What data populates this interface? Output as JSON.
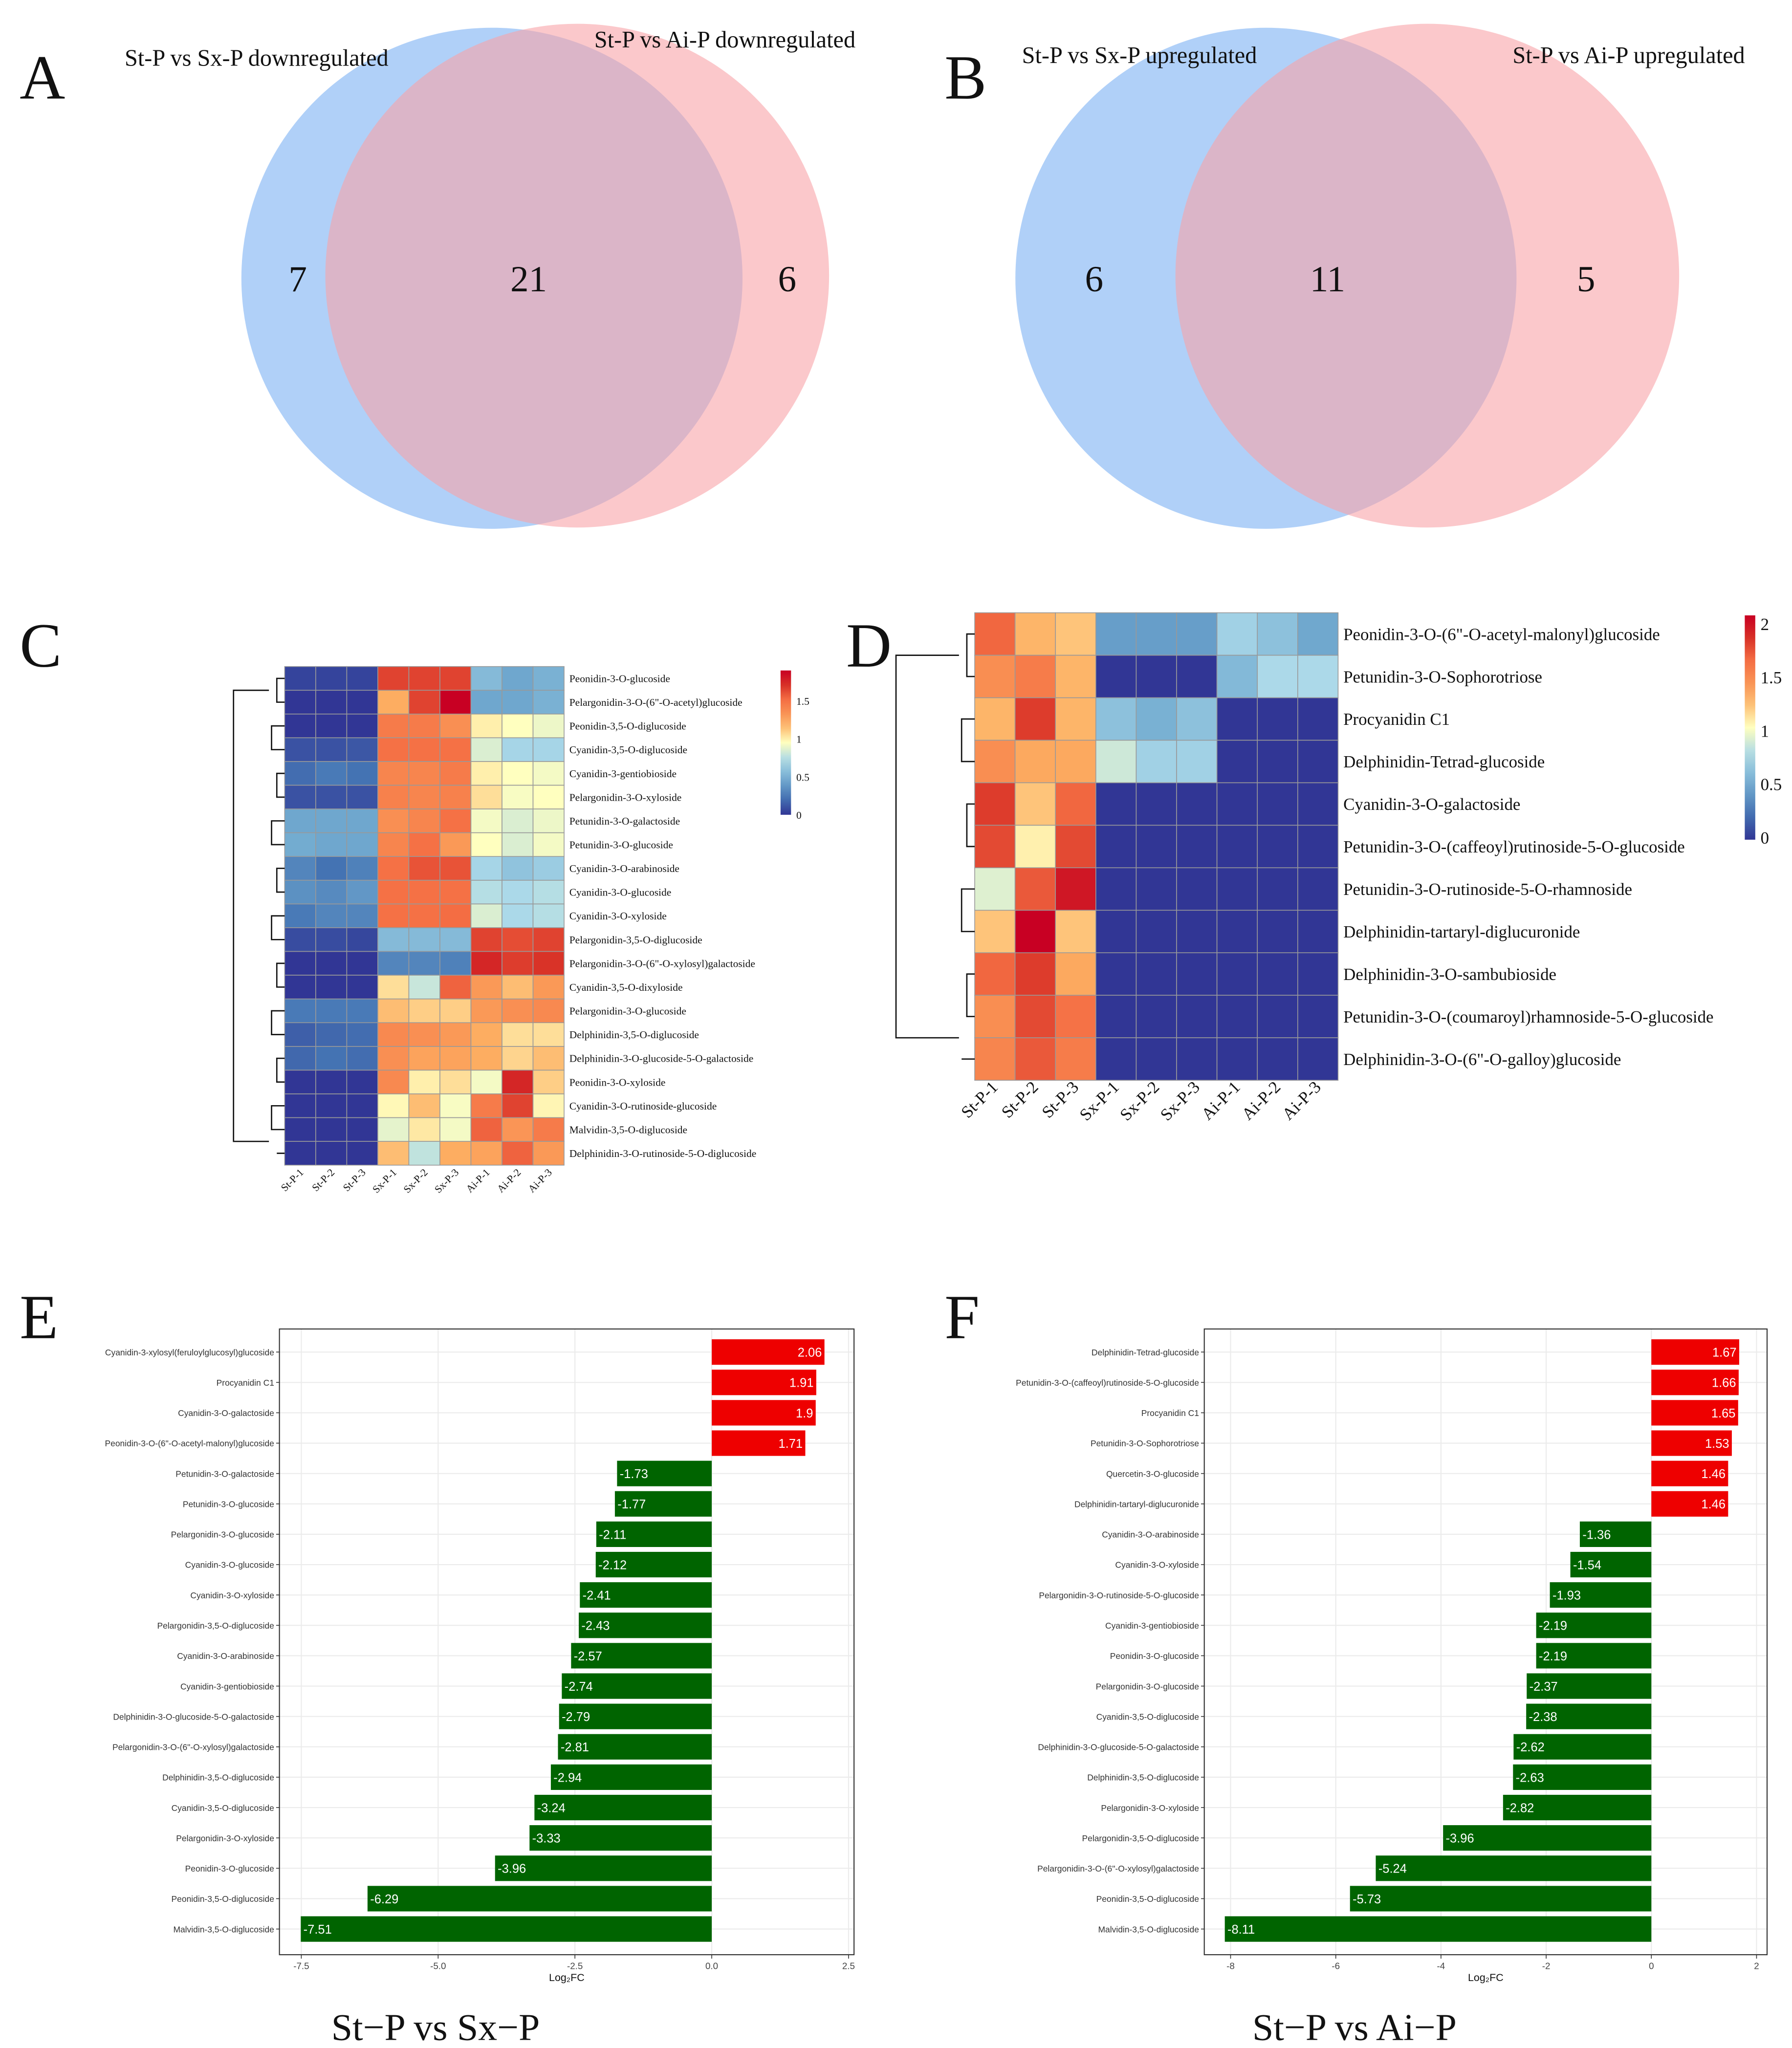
{
  "panel_letters": {
    "a": "A",
    "b": "B",
    "c": "C",
    "d": "D",
    "e": "E",
    "f": "F"
  },
  "colors": {
    "venn_blue": "#8fbcf5",
    "venn_pink": "#f9a3a8",
    "up": "#ee0000",
    "down": "#006400"
  },
  "chart_data": [
    {
      "type": "venn",
      "panel": "A",
      "sets": [
        "St-P vs Sx-P downregulated",
        "St-P vs Ai-P downregulated"
      ],
      "left_only": "7",
      "both": "21",
      "right_only": "6"
    },
    {
      "type": "venn",
      "panel": "B",
      "sets": [
        "St-P vs Sx-P upregulated",
        "St-P vs Ai-P upregulated"
      ],
      "left_only": "6",
      "both": "11",
      "right_only": "5"
    },
    {
      "type": "heatmap",
      "panel": "C",
      "columns": [
        "St-P-1",
        "St-P-2",
        "St-P-3",
        "Sx-P-1",
        "Sx-P-2",
        "Sx-P-3",
        "Ai-P-1",
        "Ai-P-2",
        "Ai-P-3"
      ],
      "colorbar_ticks": [
        "0",
        "0.5",
        "1",
        "1.5"
      ],
      "range": [
        0,
        1.9
      ],
      "rows": [
        "Peonidin-3-O-glucoside",
        "Pelargonidin-3-O-(6\"-O-acetyl)glucoside",
        "Peonidin-3,5-O-diglucoside",
        "Cyanidin-3,5-O-diglucoside",
        "Cyanidin-3-gentiobioside",
        "Pelargonidin-3-O-xyloside",
        "Petunidin-3-O-galactoside",
        "Petunidin-3-O-glucoside",
        "Cyanidin-3-O-arabinoside",
        "Cyanidin-3-O-glucoside",
        "Cyanidin-3-O-xyloside",
        "Pelargonidin-3,5-O-diglucoside",
        "Pelargonidin-3-O-(6\"-O-xylosyl)galactoside",
        "Cyanidin-3,5-O-dixyloside",
        "Pelargonidin-3-O-glucoside",
        "Delphinidin-3,5-O-diglucoside",
        "Delphinidin-3-O-glucoside-5-O-galactoside",
        "Peonidin-3-O-xyloside",
        "Cyanidin-3-O-rutinoside-glucoside",
        "Malvidin-3,5-O-diglucoside",
        "Delphinidin-3-O-rutinoside-5-O-diglucoside"
      ],
      "values": [
        [
          0.05,
          0.05,
          0.05,
          1.65,
          1.65,
          1.65,
          0.55,
          0.45,
          0.5
        ],
        [
          0,
          0,
          0,
          1.2,
          1.65,
          1.9,
          0.45,
          0.45,
          0.5
        ],
        [
          0,
          0,
          0,
          1.45,
          1.45,
          1.35,
          1.0,
          0.95,
          0.9
        ],
        [
          0.1,
          0.1,
          0.12,
          1.5,
          1.5,
          1.5,
          0.85,
          0.7,
          0.7
        ],
        [
          0.2,
          0.25,
          0.22,
          1.4,
          1.4,
          1.45,
          1.0,
          0.95,
          0.92
        ],
        [
          0.1,
          0.1,
          0.1,
          1.42,
          1.4,
          1.42,
          1.05,
          0.93,
          0.95
        ],
        [
          0.45,
          0.45,
          0.45,
          1.35,
          1.4,
          1.5,
          0.92,
          0.85,
          0.9
        ],
        [
          0.47,
          0.45,
          0.45,
          1.4,
          1.5,
          1.3,
          0.95,
          0.85,
          0.92
        ],
        [
          0.3,
          0.22,
          0.28,
          1.5,
          1.6,
          1.6,
          0.7,
          0.6,
          0.65
        ],
        [
          0.35,
          0.32,
          0.38,
          1.5,
          1.5,
          1.5,
          0.75,
          0.72,
          0.75
        ],
        [
          0.25,
          0.3,
          0.3,
          1.5,
          1.5,
          1.52,
          0.85,
          0.72,
          0.75
        ],
        [
          0.08,
          0.08,
          0.06,
          0.55,
          0.55,
          0.55,
          1.65,
          1.62,
          1.65
        ],
        [
          0,
          0,
          0,
          0.3,
          0.3,
          0.28,
          1.75,
          1.67,
          1.7
        ],
        [
          0,
          0,
          0,
          1.05,
          0.8,
          1.55,
          1.3,
          1.15,
          1.3
        ],
        [
          0.25,
          0.25,
          0.25,
          1.15,
          1.1,
          1.1,
          1.3,
          1.35,
          1.38
        ],
        [
          0.15,
          0.18,
          0.2,
          1.38,
          1.35,
          1.3,
          1.2,
          1.05,
          1.05
        ],
        [
          0.18,
          0.22,
          0.2,
          1.35,
          1.25,
          1.25,
          1.2,
          1.08,
          1.15
        ],
        [
          0,
          0,
          0,
          1.38,
          1.0,
          1.05,
          0.92,
          1.75,
          1.1
        ],
        [
          0,
          0,
          0,
          0.97,
          1.15,
          0.93,
          1.45,
          1.65,
          0.98
        ],
        [
          0,
          0,
          0,
          0.88,
          1.02,
          0.92,
          1.55,
          1.32,
          1.45
        ],
        [
          0,
          0,
          0,
          1.15,
          0.78,
          1.2,
          1.25,
          1.55,
          1.3
        ]
      ]
    },
    {
      "type": "heatmap",
      "panel": "D",
      "columns": [
        "St-P-1",
        "St-P-2",
        "St-P-3",
        "Sx-P-1",
        "Sx-P-2",
        "Sx-P-3",
        "Ai-P-1",
        "Ai-P-2",
        "Ai-P-3"
      ],
      "colorbar_ticks": [
        "0",
        "0.5",
        "1",
        "1.5",
        "2"
      ],
      "range": [
        0,
        2.1
      ],
      "rows": [
        "Peonidin-3-O-(6\"-O-acetyl-malonyl)glucoside",
        "Petunidin-3-O-Sophorotriose",
        "Procyanidin C1",
        "Delphinidin-Tetrad-glucoside",
        "Cyanidin-3-O-galactoside",
        "Petunidin-3-O-(caffeoyl)rutinoside-5-O-glucoside",
        "Petunidin-3-O-rutinoside-5-O-rhamnoside",
        "Delphinidin-tartaryl-diglucuronide",
        "Delphinidin-3-O-sambubioside",
        "Petunidin-3-O-(coumaroyl)rhamnoside-5-O-glucoside",
        "Delphinidin-3-O-(6\"-O-galloy)glucoside"
      ],
      "values": [
        [
          1.7,
          1.3,
          1.25,
          0.45,
          0.45,
          0.45,
          0.75,
          0.65,
          0.5
        ],
        [
          1.5,
          1.6,
          1.3,
          0,
          0,
          0,
          0.6,
          0.8,
          0.8
        ],
        [
          1.3,
          1.85,
          1.3,
          0.65,
          0.55,
          0.65,
          0,
          0,
          0
        ],
        [
          1.5,
          1.35,
          1.35,
          0.9,
          0.75,
          0.75,
          0,
          0,
          0
        ],
        [
          1.85,
          1.25,
          1.7,
          0,
          0,
          0,
          0,
          0,
          0
        ],
        [
          1.8,
          1.1,
          1.8,
          0,
          0,
          0,
          0,
          0,
          0
        ],
        [
          0.95,
          1.75,
          2.0,
          0,
          0,
          0,
          0,
          0,
          0
        ],
        [
          1.25,
          2.1,
          1.25,
          0,
          0,
          0,
          0,
          0,
          0
        ],
        [
          1.7,
          1.85,
          1.35,
          0,
          0,
          0,
          0,
          0,
          0
        ],
        [
          1.5,
          1.8,
          1.65,
          0,
          0,
          0,
          0,
          0,
          0
        ],
        [
          1.55,
          1.75,
          1.6,
          0,
          0,
          0,
          0,
          0,
          0
        ]
      ]
    },
    {
      "type": "bar",
      "panel": "E",
      "orientation": "horizontal",
      "title": "St−P  vs  Sx−P",
      "xlabel": "Log₂FC",
      "xlim": [
        -7.9,
        2.6
      ],
      "xticks": [
        "-7.5",
        "-5.0",
        "-2.5",
        "0.0",
        "2.5"
      ],
      "xtick_values": [
        -7.5,
        -5,
        -2.5,
        0,
        2.5
      ],
      "categories": [
        "Cyanidin-3-xylosyl(feruloylglucosyl)glucoside",
        "Procyanidin C1",
        "Cyanidin-3-O-galactoside",
        "Peonidin-3-O-(6\"-O-acetyl-malonyl)glucoside",
        "Petunidin-3-O-galactoside",
        "Petunidin-3-O-glucoside",
        "Pelargonidin-3-O-glucoside",
        "Cyanidin-3-O-glucoside",
        "Cyanidin-3-O-xyloside",
        "Pelargonidin-3,5-O-diglucoside",
        "Cyanidin-3-O-arabinoside",
        "Cyanidin-3-gentiobioside",
        "Delphinidin-3-O-glucoside-5-O-galactoside",
        "Pelargonidin-3-O-(6\"-O-xylosyl)galactoside",
        "Delphinidin-3,5-O-diglucoside",
        "Cyanidin-3,5-O-diglucoside",
        "Pelargonidin-3-O-xyloside",
        "Peonidin-3-O-glucoside",
        "Peonidin-3,5-O-diglucoside",
        "Malvidin-3,5-O-diglucoside"
      ],
      "values": [
        2.06,
        1.91,
        1.9,
        1.71,
        -1.73,
        -1.77,
        -2.11,
        -2.12,
        -2.41,
        -2.43,
        -2.57,
        -2.74,
        -2.79,
        -2.81,
        -2.94,
        -3.24,
        -3.33,
        -3.96,
        -6.29,
        -7.51
      ],
      "labels": [
        "2.06",
        "1.91",
        "1.9",
        "1.71",
        "-1.73",
        "-1.77",
        "-2.11",
        "-2.12",
        "-2.41",
        "-2.43",
        "-2.57",
        "-2.74",
        "-2.79",
        "-2.81",
        "-2.94",
        "-3.24",
        "-3.33",
        "-3.96",
        "-6.29",
        "-7.51"
      ]
    },
    {
      "type": "bar",
      "panel": "F",
      "orientation": "horizontal",
      "title": "St−P  vs  Ai−P",
      "xlabel": "Log₂FC",
      "xlim": [
        -8.5,
        2.2
      ],
      "xticks": [
        "-8",
        "-6",
        "-4",
        "-2",
        "0",
        "2"
      ],
      "xtick_values": [
        -8,
        -6,
        -4,
        -2,
        0,
        2
      ],
      "categories": [
        "Delphinidin-Tetrad-glucoside",
        "Petunidin-3-O-(caffeoyl)rutinoside-5-O-glucoside",
        "Procyanidin C1",
        "Petunidin-3-O-Sophorotriose",
        "Quercetin-3-O-glucoside",
        "Delphinidin-tartaryl-diglucuronide",
        "Cyanidin-3-O-arabinoside",
        "Cyanidin-3-O-xyloside",
        "Pelargonidin-3-O-rutinoside-5-O-glucoside",
        "Cyanidin-3-gentiobioside",
        "Peonidin-3-O-glucoside",
        "Pelargonidin-3-O-glucoside",
        "Cyanidin-3,5-O-diglucoside",
        "Delphinidin-3-O-glucoside-5-O-galactoside",
        "Delphinidin-3,5-O-diglucoside",
        "Pelargonidin-3-O-xyloside",
        "Pelargonidin-3,5-O-diglucoside",
        "Pelargonidin-3-O-(6\"-O-xylosyl)galactoside",
        "Peonidin-3,5-O-diglucoside",
        "Malvidin-3,5-O-diglucoside"
      ],
      "values": [
        1.67,
        1.66,
        1.65,
        1.53,
        1.46,
        1.46,
        -1.36,
        -1.54,
        -1.93,
        -2.19,
        -2.19,
        -2.37,
        -2.38,
        -2.62,
        -2.63,
        -2.82,
        -3.96,
        -5.24,
        -5.73,
        -8.11
      ],
      "labels": [
        "1.67",
        "1.66",
        "1.65",
        "1.53",
        "1.46",
        "1.46",
        "-1.36",
        "-1.54",
        "-1.93",
        "-2.19",
        "-2.19",
        "-2.37",
        "-2.38",
        "-2.62",
        "-2.63",
        "-2.82",
        "-3.96",
        "-5.24",
        "-5.73",
        "-8.11"
      ]
    }
  ]
}
